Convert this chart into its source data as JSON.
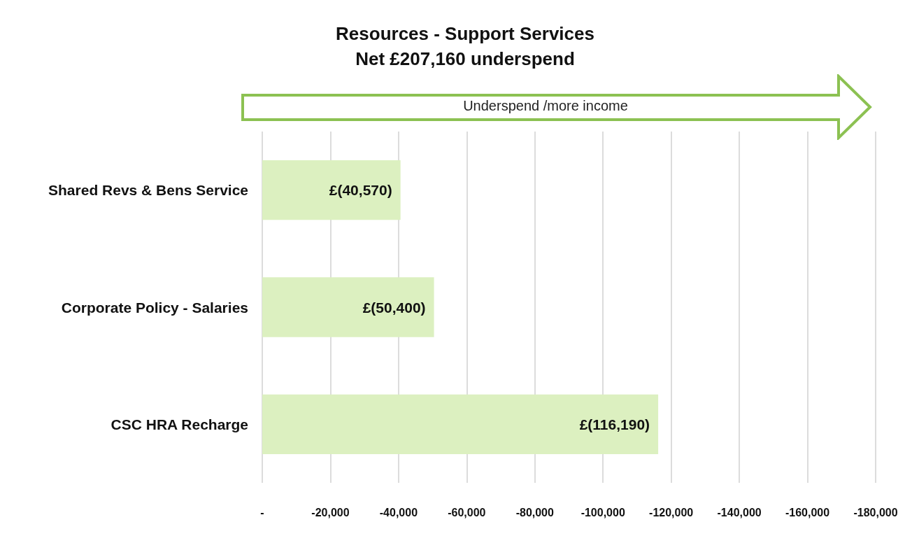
{
  "chart_data": {
    "type": "bar",
    "title": "Resources - Support Services",
    "subtitle": "Net £207,160 underspend",
    "orientation": "horizontal",
    "categories": [
      "Shared Revs & Bens Service",
      "Corporate Policy - Salaries",
      "CSC HRA Recharge"
    ],
    "values": [
      -40570,
      -50400,
      -116190
    ],
    "value_labels": [
      "£(40,570)",
      "£(50,400)",
      "£(116,190)"
    ],
    "color": "#dcf0c0",
    "xlim": [
      0,
      -180000
    ],
    "xticks": [
      {
        "value": 0,
        "label": "-"
      },
      {
        "value": -20000,
        "label": "-20,000"
      },
      {
        "value": -40000,
        "label": "-40,000"
      },
      {
        "value": -60000,
        "label": "-60,000"
      },
      {
        "value": -80000,
        "label": "-80,000"
      },
      {
        "value": -100000,
        "label": "-100,000"
      },
      {
        "value": -120000,
        "label": "-120,000"
      },
      {
        "value": -140000,
        "label": "-140,000"
      },
      {
        "value": -160000,
        "label": "-160,000"
      },
      {
        "value": -180000,
        "label": "-180,000"
      }
    ],
    "annotations": [
      "Underspend /more income"
    ],
    "grid": "x"
  }
}
